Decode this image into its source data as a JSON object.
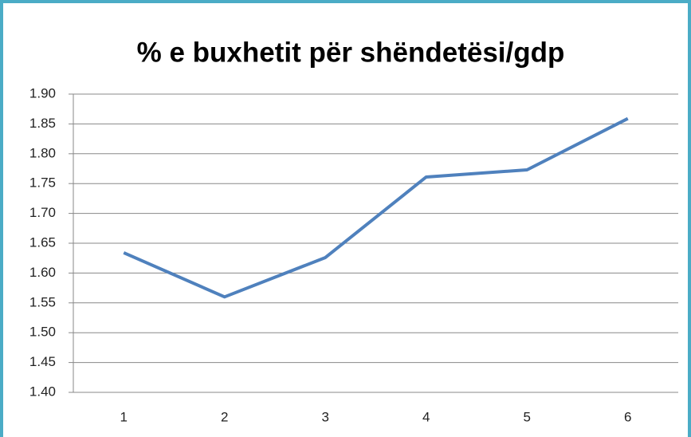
{
  "chart_data": {
    "type": "line",
    "title": "% e buxhetit për shëndetësi/gdp",
    "categories": [
      "1",
      "2",
      "3",
      "4",
      "5",
      "6"
    ],
    "series": [
      {
        "name": null,
        "color": "#4f81bd",
        "values": [
          1.634,
          1.56,
          1.626,
          1.761,
          1.773,
          1.859
        ]
      }
    ],
    "ylim": [
      1.4,
      1.9
    ],
    "yticks": [
      {
        "value": 1.4,
        "label": "1.40"
      },
      1.45,
      {
        "value": 1.5,
        "label": "1.50"
      },
      1.55,
      {
        "value": 1.6,
        "label": "1.60"
      },
      1.65,
      {
        "value": 1.7,
        "label": "1.70"
      },
      1.75,
      {
        "value": 1.8,
        "label": "1.80"
      },
      1.85,
      {
        "value": 1.9,
        "label": "1.90"
      }
    ],
    "grid": true
  }
}
